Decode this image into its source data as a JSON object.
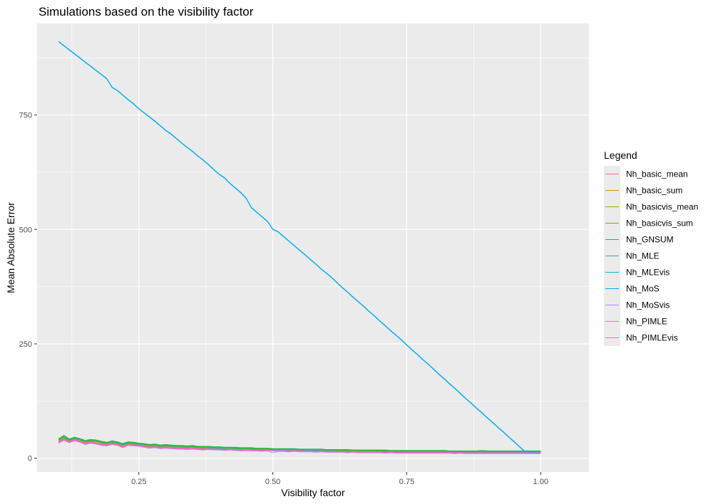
{
  "chart_data": {
    "type": "line",
    "title": "Simulations based on the visibility factor",
    "xlabel": "Visibility factor",
    "ylabel": "Mean Absolute Error",
    "xlim": [
      0.06,
      1.09
    ],
    "ylim": [
      -30,
      950
    ],
    "x_ticks": [
      0.25,
      0.5,
      0.75,
      1.0
    ],
    "x_tick_labels": [
      "0.25",
      "0.50",
      "0.75",
      "1.00"
    ],
    "y_ticks": [
      0,
      250,
      500,
      750
    ],
    "y_tick_labels": [
      "0",
      "250",
      "500",
      "750"
    ],
    "grid": true,
    "legend_title": "Legend",
    "legend_position": "right",
    "x": [
      0.1,
      0.11,
      0.12,
      0.13,
      0.14,
      0.15,
      0.16,
      0.17,
      0.18,
      0.19,
      0.2,
      0.21,
      0.22,
      0.23,
      0.24,
      0.25,
      0.26,
      0.27,
      0.28,
      0.29,
      0.3,
      0.31,
      0.32,
      0.33,
      0.34,
      0.35,
      0.36,
      0.37,
      0.38,
      0.39,
      0.4,
      0.41,
      0.42,
      0.43,
      0.44,
      0.45,
      0.46,
      0.47,
      0.48,
      0.49,
      0.5,
      0.51,
      0.52,
      0.53,
      0.54,
      0.55,
      0.56,
      0.57,
      0.58,
      0.59,
      0.6,
      0.61,
      0.62,
      0.63,
      0.64,
      0.65,
      0.66,
      0.67,
      0.68,
      0.69,
      0.7,
      0.71,
      0.72,
      0.73,
      0.74,
      0.75,
      0.76,
      0.77,
      0.78,
      0.79,
      0.8,
      0.81,
      0.82,
      0.83,
      0.84,
      0.85,
      0.86,
      0.87,
      0.88,
      0.89,
      0.9,
      0.91,
      0.92,
      0.93,
      0.94,
      0.95,
      0.96,
      0.97,
      0.98,
      0.99,
      1.0
    ],
    "series": [
      {
        "name": "Nh_basic_mean",
        "color": "#F8766D",
        "values": [
          36,
          42,
          37,
          41,
          38,
          33,
          36,
          34,
          31,
          30,
          33,
          31,
          26,
          31,
          30,
          29,
          27,
          25,
          26,
          24,
          25,
          24,
          23,
          23,
          22,
          23,
          22,
          21,
          22,
          21,
          21,
          20,
          21,
          20,
          19,
          20,
          19,
          19,
          18,
          19,
          18,
          18,
          18,
          17,
          18,
          17,
          17,
          17,
          16,
          17,
          16,
          16,
          16,
          16,
          15,
          16,
          15,
          15,
          15,
          15,
          15,
          14,
          15,
          14,
          14,
          14,
          14,
          14,
          14,
          14,
          14,
          14,
          14,
          14,
          13,
          14,
          13,
          13,
          13,
          13,
          13,
          13,
          13,
          13,
          13,
          13,
          13,
          13,
          12,
          12,
          12
        ]
      },
      {
        "name": "Nh_basic_sum",
        "color": "#DB8E00",
        "values": [
          37,
          43,
          38,
          42,
          39,
          34,
          37,
          35,
          32,
          31,
          34,
          32,
          27,
          32,
          31,
          29,
          28,
          26,
          27,
          25,
          26,
          25,
          24,
          24,
          23,
          24,
          23,
          22,
          22,
          22,
          21,
          21,
          21,
          20,
          20,
          20,
          19,
          19,
          19,
          19,
          18,
          18,
          18,
          18,
          18,
          17,
          17,
          17,
          17,
          17,
          16,
          16,
          16,
          16,
          16,
          16,
          15,
          15,
          15,
          15,
          15,
          15,
          15,
          15,
          14,
          14,
          14,
          14,
          14,
          14,
          14,
          14,
          14,
          14,
          14,
          14,
          14,
          13,
          13,
          14,
          13,
          13,
          13,
          13,
          13,
          13,
          13,
          13,
          13,
          13,
          13
        ]
      },
      {
        "name": "Nh_basicvis_mean",
        "color": "#AEA200",
        "values": [
          40,
          46,
          40,
          44,
          41,
          37,
          39,
          38,
          35,
          33,
          36,
          34,
          30,
          34,
          33,
          31,
          30,
          28,
          29,
          27,
          28,
          27,
          26,
          26,
          25,
          26,
          24,
          24,
          24,
          23,
          23,
          22,
          22,
          22,
          21,
          21,
          21,
          20,
          20,
          20,
          19,
          19,
          19,
          19,
          19,
          18,
          18,
          18,
          18,
          18,
          17,
          17,
          17,
          17,
          17,
          16,
          16,
          16,
          16,
          16,
          16,
          16,
          15,
          15,
          15,
          15,
          15,
          15,
          15,
          15,
          15,
          15,
          15,
          14,
          14,
          14,
          14,
          14,
          14,
          15,
          14,
          14,
          14,
          14,
          14,
          14,
          14,
          14,
          14,
          14,
          14
        ]
      },
      {
        "name": "Nh_basicvis_sum",
        "color": "#64B200",
        "values": [
          41,
          48,
          41,
          45,
          42,
          38,
          40,
          39,
          36,
          34,
          37,
          35,
          31,
          35,
          34,
          32,
          31,
          29,
          30,
          28,
          29,
          28,
          27,
          27,
          26,
          27,
          25,
          25,
          25,
          24,
          24,
          23,
          23,
          23,
          22,
          22,
          22,
          21,
          21,
          21,
          20,
          20,
          20,
          20,
          20,
          19,
          19,
          19,
          19,
          19,
          18,
          18,
          18,
          18,
          18,
          17,
          17,
          17,
          17,
          17,
          17,
          17,
          16,
          16,
          16,
          16,
          16,
          16,
          16,
          16,
          16,
          16,
          16,
          15,
          15,
          15,
          15,
          15,
          15,
          16,
          15,
          15,
          15,
          15,
          15,
          15,
          15,
          15,
          15,
          15,
          15
        ]
      },
      {
        "name": "Nh_GNSUM",
        "color": "#00BD5C",
        "values": [
          42,
          50,
          42,
          46,
          43,
          39,
          41,
          40,
          37,
          35,
          38,
          36,
          32,
          36,
          35,
          33,
          32,
          30,
          31,
          29,
          30,
          29,
          28,
          28,
          27,
          28,
          26,
          26,
          26,
          25,
          25,
          24,
          24,
          24,
          23,
          23,
          23,
          22,
          22,
          22,
          21,
          21,
          21,
          21,
          21,
          20,
          20,
          20,
          20,
          20,
          19,
          19,
          19,
          19,
          19,
          18,
          18,
          18,
          18,
          18,
          18,
          18,
          17,
          17,
          17,
          17,
          17,
          17,
          17,
          17,
          17,
          17,
          17,
          16,
          16,
          16,
          16,
          16,
          16,
          17,
          16,
          16,
          16,
          16,
          16,
          16,
          16,
          16,
          16,
          16,
          16
        ]
      },
      {
        "name": "Nh_MLE",
        "color": "#00C1A7",
        "values": [
          39,
          45,
          39,
          43,
          40,
          36,
          38,
          37,
          34,
          32,
          35,
          33,
          29,
          33,
          32,
          30,
          29,
          27,
          28,
          26,
          27,
          26,
          25,
          25,
          24,
          25,
          23,
          23,
          23,
          22,
          22,
          21,
          21,
          21,
          20,
          20,
          20,
          19,
          19,
          19,
          18,
          18,
          18,
          18,
          18,
          17,
          17,
          17,
          17,
          17,
          16,
          16,
          16,
          16,
          16,
          15,
          15,
          15,
          15,
          15,
          15,
          15,
          14,
          14,
          14,
          14,
          14,
          14,
          14,
          14,
          14,
          14,
          14,
          14,
          14,
          14,
          14,
          14,
          14,
          14,
          14,
          14,
          14,
          14,
          14,
          14,
          14,
          14,
          14,
          14,
          14
        ]
      },
      {
        "name": "Nh_MLEvis",
        "color": "#00BADE",
        "values": [
          910,
          901,
          892,
          883,
          874,
          865,
          856,
          847,
          838,
          829,
          810,
          803,
          793,
          783,
          774,
          763,
          754,
          745,
          736,
          726,
          716,
          708,
          698,
          688,
          679,
          670,
          660,
          651,
          641,
          630,
          620,
          612,
          600,
          590,
          580,
          568,
          547,
          537,
          527,
          517,
          500,
          494,
          484,
          474,
          464,
          454,
          444,
          434,
          424,
          413,
          404,
          394,
          383,
          372,
          362,
          351,
          341,
          331,
          320,
          310,
          299,
          289,
          278,
          268,
          258,
          247,
          236,
          226,
          215,
          205,
          194,
          183,
          173,
          162,
          152,
          141,
          130,
          120,
          109,
          99,
          88,
          78,
          67,
          57,
          46,
          36,
          25,
          15,
          13,
          13,
          13
        ]
      },
      {
        "name": "Nh_MoS",
        "color": "#00A6FF",
        "values": [
          911,
          902,
          893,
          884,
          875,
          866,
          857,
          848,
          839,
          830,
          811,
          804,
          794,
          784,
          775,
          764,
          755,
          746,
          737,
          727,
          717,
          709,
          699,
          689,
          680,
          671,
          661,
          652,
          642,
          631,
          621,
          613,
          601,
          591,
          581,
          569,
          548,
          538,
          528,
          518,
          501,
          495,
          485,
          475,
          465,
          455,
          445,
          435,
          425,
          414,
          405,
          395,
          384,
          373,
          363,
          352,
          342,
          332,
          321,
          311,
          300,
          290,
          279,
          269,
          259,
          248,
          237,
          227,
          216,
          206,
          195,
          184,
          174,
          163,
          153,
          142,
          131,
          121,
          110,
          100,
          89,
          79,
          68,
          58,
          47,
          37,
          26,
          16,
          13,
          13,
          13
        ]
      },
      {
        "name": "Nh_MoSvis",
        "color": "#B385FF",
        "values": [
          33,
          39,
          34,
          38,
          35,
          30,
          33,
          31,
          28,
          27,
          30,
          28,
          23,
          28,
          27,
          26,
          24,
          22,
          23,
          21,
          22,
          21,
          20,
          20,
          19,
          20,
          19,
          18,
          19,
          18,
          18,
          17,
          18,
          17,
          16,
          17,
          16,
          16,
          15,
          16,
          12,
          15,
          15,
          14,
          15,
          14,
          14,
          14,
          13,
          14,
          13,
          13,
          13,
          13,
          12,
          13,
          12,
          12,
          12,
          12,
          12,
          11,
          12,
          11,
          11,
          11,
          11,
          11,
          11,
          11,
          11,
          11,
          11,
          11,
          10,
          11,
          10,
          10,
          10,
          10,
          10,
          10,
          10,
          10,
          10,
          10,
          10,
          10,
          10,
          10,
          10
        ]
      },
      {
        "name": "Nh_PIMLE",
        "color": "#EF67EB",
        "values": [
          35,
          41,
          36,
          40,
          37,
          32,
          35,
          33,
          30,
          29,
          32,
          30,
          25,
          30,
          29,
          28,
          26,
          24,
          25,
          23,
          24,
          23,
          22,
          22,
          21,
          22,
          21,
          20,
          21,
          20,
          20,
          19,
          20,
          19,
          18,
          19,
          18,
          18,
          17,
          18,
          17,
          17,
          17,
          16,
          17,
          16,
          16,
          16,
          15,
          16,
          15,
          15,
          15,
          15,
          14,
          15,
          14,
          14,
          14,
          14,
          14,
          13,
          14,
          13,
          13,
          13,
          13,
          13,
          13,
          13,
          13,
          13,
          13,
          13,
          12,
          13,
          12,
          12,
          12,
          12,
          12,
          12,
          12,
          12,
          12,
          12,
          12,
          12,
          12,
          12,
          12
        ]
      },
      {
        "name": "Nh_PIMLEvis",
        "color": "#FF63B6",
        "values": [
          34,
          40,
          35,
          39,
          36,
          31,
          34,
          32,
          29,
          28,
          31,
          29,
          24,
          29,
          28,
          27,
          25,
          23,
          24,
          22,
          23,
          22,
          21,
          21,
          20,
          21,
          20,
          19,
          20,
          19,
          19,
          18,
          19,
          18,
          17,
          18,
          17,
          17,
          16,
          17,
          16,
          16,
          16,
          15,
          16,
          15,
          15,
          15,
          14,
          15,
          14,
          14,
          14,
          14,
          13,
          14,
          13,
          13,
          13,
          13,
          13,
          12,
          13,
          12,
          12,
          12,
          12,
          12,
          12,
          12,
          12,
          12,
          12,
          12,
          11,
          12,
          11,
          11,
          11,
          11,
          11,
          11,
          11,
          11,
          11,
          11,
          11,
          11,
          11,
          11,
          11
        ]
      }
    ]
  }
}
